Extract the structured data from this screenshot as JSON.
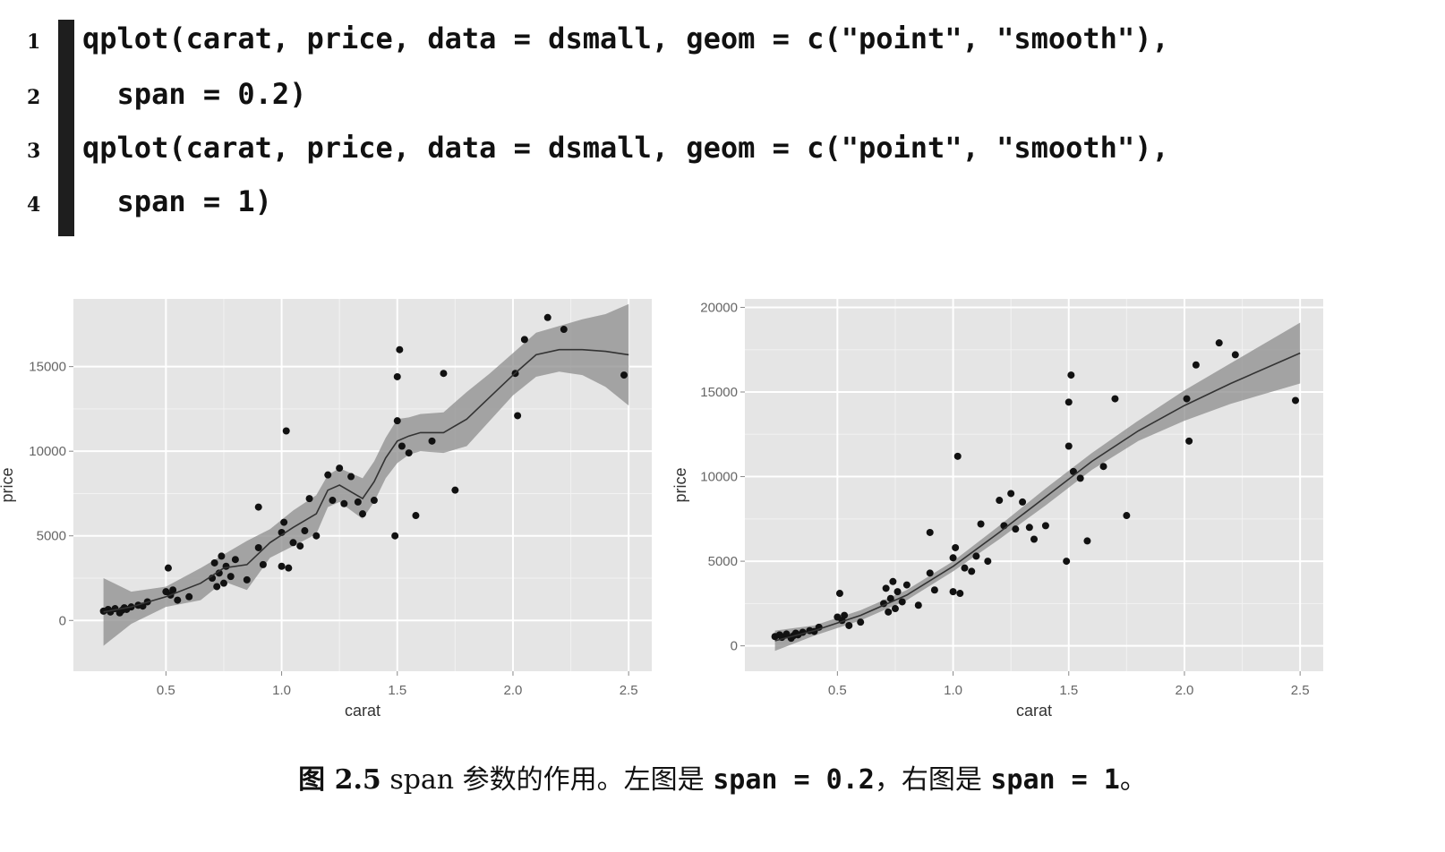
{
  "code": {
    "lines": [
      {
        "num": "1",
        "text": "qplot(carat, price, data = dsmall, geom = c(\"point\", \"smooth\"),"
      },
      {
        "num": "2",
        "text": "  span = 0.2)"
      },
      {
        "num": "3",
        "text": "qplot(carat, price, data = dsmall, geom = c(\"point\", \"smooth\"),"
      },
      {
        "num": "4",
        "text": "  span = 1)"
      }
    ]
  },
  "caption": {
    "label": "图 2.5",
    "text": "span 参数的作用。左图是",
    "code1": "span = 0.2",
    "sep": "，右图是",
    "code2": "span = 1",
    "end": "。"
  },
  "chart_data": [
    {
      "type": "scatter",
      "title": "",
      "xlabel": "carat",
      "ylabel": "price",
      "xlim": [
        0.1,
        2.6
      ],
      "ylim": [
        -3000,
        19000
      ],
      "xticks": [
        "0.5",
        "1.0",
        "1.5",
        "2.0",
        "2.5"
      ],
      "xtick_values": [
        0.5,
        1.0,
        1.5,
        2.0,
        2.5
      ],
      "yticks": [
        "0",
        "5000",
        "10000",
        "15000"
      ],
      "ytick_values": [
        0,
        5000,
        10000,
        15000
      ],
      "grid": true,
      "span": 0.2,
      "points": [
        [
          0.23,
          550
        ],
        [
          0.25,
          650
        ],
        [
          0.26,
          500
        ],
        [
          0.28,
          700
        ],
        [
          0.3,
          450
        ],
        [
          0.31,
          600
        ],
        [
          0.32,
          750
        ],
        [
          0.33,
          650
        ],
        [
          0.35,
          800
        ],
        [
          0.38,
          900
        ],
        [
          0.4,
          850
        ],
        [
          0.42,
          1100
        ],
        [
          0.5,
          1700
        ],
        [
          0.51,
          3100
        ],
        [
          0.52,
          1500
        ],
        [
          0.53,
          1800
        ],
        [
          0.55,
          1200
        ],
        [
          0.6,
          1400
        ],
        [
          0.7,
          2500
        ],
        [
          0.71,
          3400
        ],
        [
          0.72,
          2000
        ],
        [
          0.73,
          2800
        ],
        [
          0.74,
          3800
        ],
        [
          0.75,
          2200
        ],
        [
          0.76,
          3200
        ],
        [
          0.78,
          2600
        ],
        [
          0.8,
          3600
        ],
        [
          0.85,
          2400
        ],
        [
          0.9,
          6700
        ],
        [
          0.9,
          4300
        ],
        [
          0.92,
          3300
        ],
        [
          1.0,
          5200
        ],
        [
          1.0,
          3200
        ],
        [
          1.01,
          5800
        ],
        [
          1.02,
          11200
        ],
        [
          1.03,
          3100
        ],
        [
          1.05,
          4600
        ],
        [
          1.08,
          4400
        ],
        [
          1.1,
          5300
        ],
        [
          1.12,
          7200
        ],
        [
          1.15,
          5000
        ],
        [
          1.2,
          8600
        ],
        [
          1.22,
          7100
        ],
        [
          1.25,
          9000
        ],
        [
          1.27,
          6900
        ],
        [
          1.3,
          8500
        ],
        [
          1.33,
          7000
        ],
        [
          1.35,
          6300
        ],
        [
          1.4,
          7100
        ],
        [
          1.49,
          5000
        ],
        [
          1.5,
          14400
        ],
        [
          1.51,
          16000
        ],
        [
          1.5,
          11800
        ],
        [
          1.52,
          10300
        ],
        [
          1.55,
          9900
        ],
        [
          1.58,
          6200
        ],
        [
          1.65,
          10600
        ],
        [
          1.7,
          14600
        ],
        [
          1.75,
          7700
        ],
        [
          2.01,
          14600
        ],
        [
          2.02,
          12100
        ],
        [
          2.05,
          16600
        ],
        [
          2.15,
          17900
        ],
        [
          2.22,
          17200
        ],
        [
          2.48,
          14500
        ]
      ],
      "smooth": {
        "x": [
          0.23,
          0.35,
          0.5,
          0.65,
          0.75,
          0.85,
          0.95,
          1.05,
          1.15,
          1.2,
          1.25,
          1.3,
          1.35,
          1.4,
          1.45,
          1.5,
          1.55,
          1.6,
          1.7,
          1.8,
          1.9,
          2.0,
          2.1,
          2.2,
          2.3,
          2.4,
          2.5
        ],
        "y": [
          500,
          800,
          1400,
          2200,
          3100,
          3300,
          4600,
          5500,
          6300,
          7700,
          8000,
          7600,
          7200,
          8200,
          9600,
          10600,
          10900,
          11100,
          11100,
          11900,
          13200,
          14500,
          15700,
          16000,
          16000,
          15900,
          15700
        ],
        "ymin": [
          -1500,
          -200,
          800,
          1200,
          2300,
          1800,
          3700,
          4400,
          5100,
          6700,
          7000,
          6500,
          6000,
          7000,
          8400,
          9300,
          9800,
          10000,
          9900,
          10300,
          11800,
          13300,
          14400,
          14700,
          14500,
          13800,
          12700
        ],
        "ymax": [
          2500,
          1700,
          2000,
          3100,
          3900,
          4700,
          5400,
          6500,
          7400,
          8600,
          9000,
          8700,
          8400,
          9400,
          10800,
          11900,
          12000,
          12200,
          12300,
          13500,
          14600,
          15800,
          17000,
          17400,
          17800,
          18100,
          18700
        ]
      }
    },
    {
      "type": "scatter",
      "title": "",
      "xlabel": "carat",
      "ylabel": "price",
      "xlim": [
        0.1,
        2.6
      ],
      "ylim": [
        -1500,
        20500
      ],
      "xticks": [
        "0.5",
        "1.0",
        "1.5",
        "2.0",
        "2.5"
      ],
      "xtick_values": [
        0.5,
        1.0,
        1.5,
        2.0,
        2.5
      ],
      "yticks": [
        "0",
        "5000",
        "10000",
        "15000",
        "20000"
      ],
      "ytick_values": [
        0,
        5000,
        10000,
        15000,
        20000
      ],
      "grid": true,
      "span": 1,
      "points": [
        [
          0.23,
          550
        ],
        [
          0.25,
          650
        ],
        [
          0.26,
          500
        ],
        [
          0.28,
          700
        ],
        [
          0.3,
          450
        ],
        [
          0.31,
          600
        ],
        [
          0.32,
          750
        ],
        [
          0.33,
          650
        ],
        [
          0.35,
          800
        ],
        [
          0.38,
          900
        ],
        [
          0.4,
          850
        ],
        [
          0.42,
          1100
        ],
        [
          0.5,
          1700
        ],
        [
          0.51,
          3100
        ],
        [
          0.52,
          1500
        ],
        [
          0.53,
          1800
        ],
        [
          0.55,
          1200
        ],
        [
          0.6,
          1400
        ],
        [
          0.7,
          2500
        ],
        [
          0.71,
          3400
        ],
        [
          0.72,
          2000
        ],
        [
          0.73,
          2800
        ],
        [
          0.74,
          3800
        ],
        [
          0.75,
          2200
        ],
        [
          0.76,
          3200
        ],
        [
          0.78,
          2600
        ],
        [
          0.8,
          3600
        ],
        [
          0.85,
          2400
        ],
        [
          0.9,
          6700
        ],
        [
          0.9,
          4300
        ],
        [
          0.92,
          3300
        ],
        [
          1.0,
          5200
        ],
        [
          1.0,
          3200
        ],
        [
          1.01,
          5800
        ],
        [
          1.02,
          11200
        ],
        [
          1.03,
          3100
        ],
        [
          1.05,
          4600
        ],
        [
          1.08,
          4400
        ],
        [
          1.1,
          5300
        ],
        [
          1.12,
          7200
        ],
        [
          1.15,
          5000
        ],
        [
          1.2,
          8600
        ],
        [
          1.22,
          7100
        ],
        [
          1.25,
          9000
        ],
        [
          1.27,
          6900
        ],
        [
          1.3,
          8500
        ],
        [
          1.33,
          7000
        ],
        [
          1.35,
          6300
        ],
        [
          1.4,
          7100
        ],
        [
          1.49,
          5000
        ],
        [
          1.5,
          14400
        ],
        [
          1.51,
          16000
        ],
        [
          1.5,
          11800
        ],
        [
          1.52,
          10300
        ],
        [
          1.55,
          9900
        ],
        [
          1.58,
          6200
        ],
        [
          1.65,
          10600
        ],
        [
          1.7,
          14600
        ],
        [
          1.75,
          7700
        ],
        [
          2.01,
          14600
        ],
        [
          2.02,
          12100
        ],
        [
          2.05,
          16600
        ],
        [
          2.15,
          17900
        ],
        [
          2.22,
          17200
        ],
        [
          2.48,
          14500
        ]
      ],
      "smooth": {
        "x": [
          0.23,
          0.4,
          0.6,
          0.8,
          1.0,
          1.2,
          1.4,
          1.6,
          1.8,
          2.0,
          2.2,
          2.5
        ],
        "y": [
          300,
          900,
          1800,
          3000,
          4700,
          6700,
          8800,
          10900,
          12700,
          14200,
          15500,
          17300
        ],
        "ymin": [
          -300,
          600,
          1500,
          2700,
          4400,
          6300,
          8300,
          10400,
          12100,
          13300,
          14300,
          15500
        ],
        "ymax": [
          900,
          1200,
          2100,
          3300,
          5000,
          7100,
          9300,
          11400,
          13300,
          15100,
          16700,
          19100
        ]
      }
    }
  ]
}
